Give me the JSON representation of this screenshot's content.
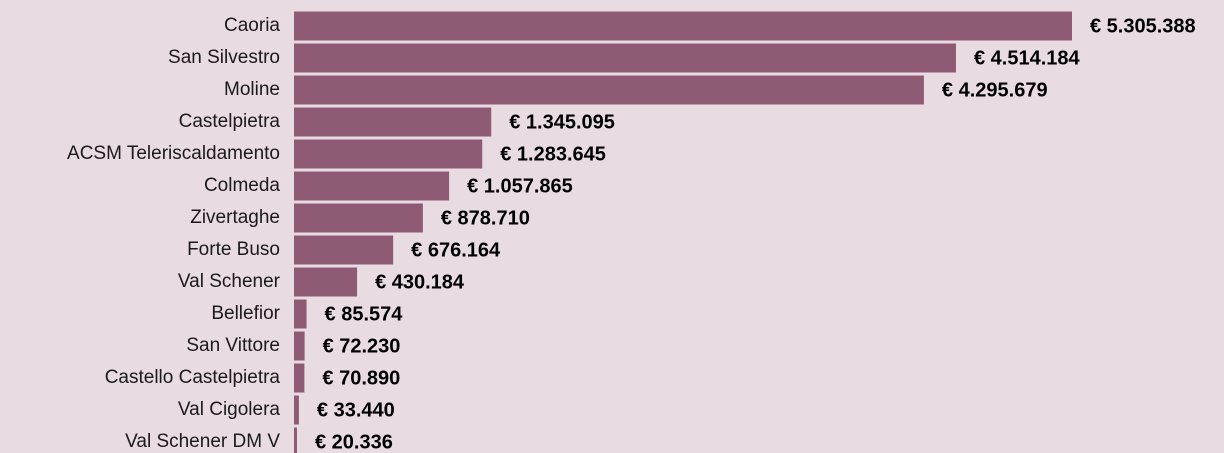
{
  "chart_data": {
    "type": "bar",
    "orientation": "horizontal",
    "color": "#8e5a74",
    "categories": [
      "Caoria",
      "San Silvestro",
      "Moline",
      "Castelpietra",
      "ACSM Teleriscaldamento",
      "Colmeda",
      "Zivertaghe",
      "Forte Buso",
      "Val Schener",
      "Bellefior",
      "San Vittore",
      "Castello Castelpietra",
      "Val Cigolera",
      "Val Schener DM V"
    ],
    "values": [
      5305388,
      4514184,
      4295679,
      1345095,
      1283645,
      1057865,
      878710,
      676164,
      430184,
      85574,
      72230,
      70890,
      33440,
      20336
    ],
    "value_labels": [
      "€ 5.305.388",
      "€ 4.514.184",
      "€ 4.295.679",
      "€ 1.345.095",
      "€ 1.283.645",
      "€ 1.057.865",
      "€ 878.710",
      "€ 676.164",
      "€ 430.184",
      "€ 85.574",
      "€ 72.230",
      "€ 70.890",
      "€ 33.440",
      "€ 20.336"
    ]
  }
}
